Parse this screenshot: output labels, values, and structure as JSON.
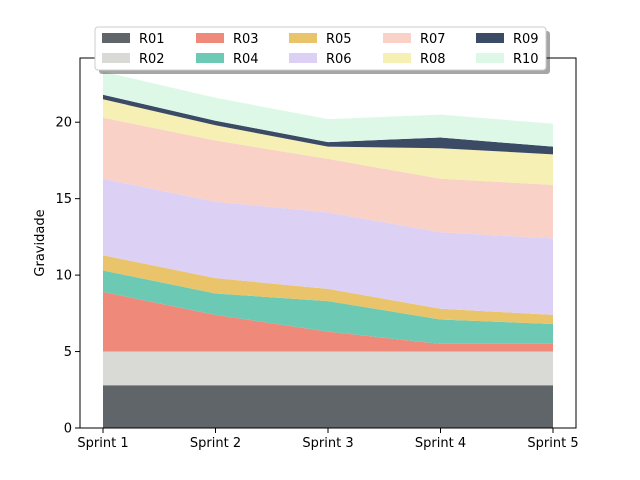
{
  "chart_data": {
    "type": "area",
    "stacked": true,
    "title": "",
    "xlabel": "",
    "ylabel": "Gravidade",
    "categories": [
      "Sprint 1",
      "Sprint 2",
      "Sprint 3",
      "Sprint 4",
      "Sprint 5"
    ],
    "ylim": [
      0,
      24.2
    ],
    "yticks": [
      0,
      5,
      10,
      15,
      20
    ],
    "grid": false,
    "legend_position": "top-center",
    "legend_columns": 5,
    "series": [
      {
        "name": "R01",
        "color": "#606569",
        "values": [
          2.8,
          2.8,
          2.8,
          2.8,
          2.8
        ]
      },
      {
        "name": "R02",
        "color": "#d9d9d6",
        "values": [
          2.2,
          2.2,
          2.2,
          2.2,
          2.2
        ]
      },
      {
        "name": "R03",
        "color": "#ef8a7a",
        "values": [
          3.9,
          2.4,
          1.3,
          0.5,
          0.5
        ]
      },
      {
        "name": "R04",
        "color": "#6cc9b4",
        "values": [
          1.4,
          1.4,
          2.0,
          1.6,
          1.3
        ]
      },
      {
        "name": "R05",
        "color": "#e9c46a",
        "values": [
          1.0,
          1.0,
          0.8,
          0.7,
          0.6
        ]
      },
      {
        "name": "R06",
        "color": "#ddd0f5",
        "values": [
          5.0,
          5.0,
          5.0,
          5.0,
          5.0
        ]
      },
      {
        "name": "R07",
        "color": "#f9d1c6",
        "values": [
          4.0,
          4.0,
          3.5,
          3.5,
          3.5
        ]
      },
      {
        "name": "R08",
        "color": "#f6f0b4",
        "values": [
          1.2,
          1.0,
          0.8,
          2.0,
          2.0
        ]
      },
      {
        "name": "R09",
        "color": "#3b4b66",
        "values": [
          0.3,
          0.3,
          0.3,
          0.7,
          0.5
        ]
      },
      {
        "name": "R10",
        "color": "#ddf8e6",
        "values": [
          1.5,
          1.5,
          1.5,
          1.5,
          1.5
        ]
      }
    ]
  }
}
